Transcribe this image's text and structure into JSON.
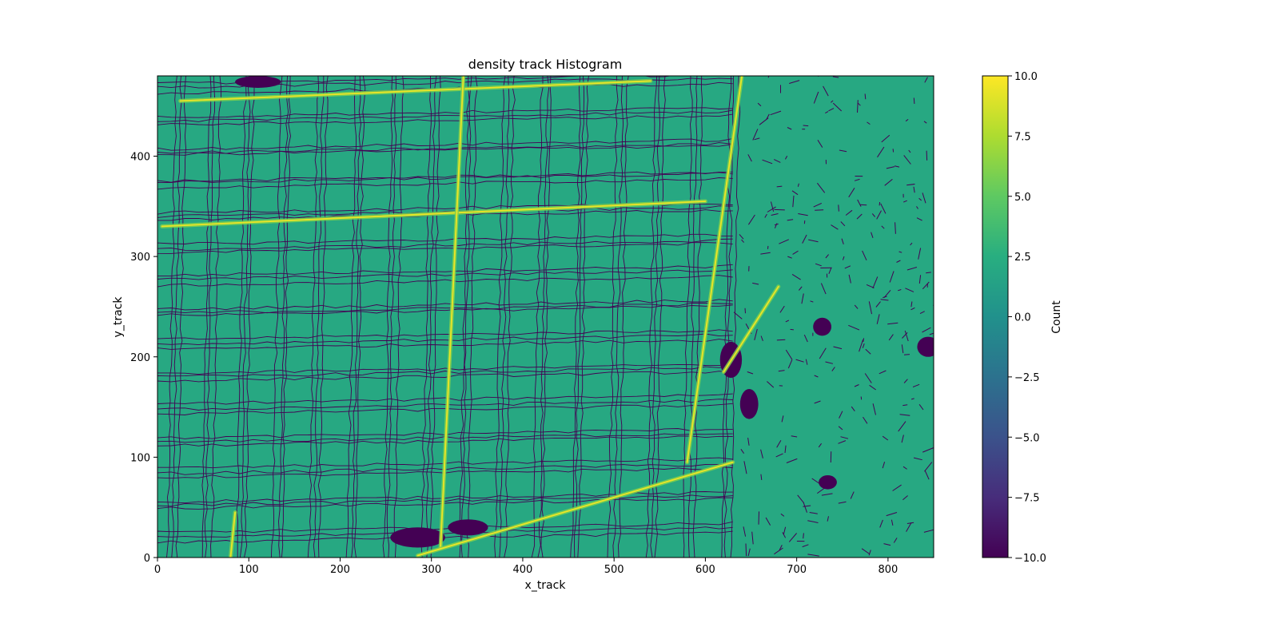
{
  "chart_data": {
    "type": "heatmap",
    "title": "density track Histogram",
    "xlabel": "x_track",
    "ylabel": "y_track",
    "xlim": [
      0,
      850
    ],
    "ylim": [
      0,
      480
    ],
    "x_ticks": [
      0,
      100,
      200,
      300,
      400,
      500,
      600,
      700,
      800
    ],
    "x_tick_labels": [
      "0",
      "100",
      "200",
      "300",
      "400",
      "500",
      "600",
      "700",
      "800"
    ],
    "y_ticks": [
      0,
      100,
      200,
      300,
      400
    ],
    "y_tick_labels": [
      "0",
      "100",
      "200",
      "300",
      "400"
    ],
    "colormap": "viridis",
    "colorbar": {
      "label": "Count",
      "range": [
        -10.0,
        10.0
      ],
      "ticks": [
        10.0,
        7.5,
        5.0,
        2.5,
        0.0,
        -2.5,
        -5.0,
        -7.5,
        -10.0
      ],
      "tick_labels": [
        "10.0",
        "7.5",
        "5.0",
        "2.5",
        "0.0",
        "−2.5",
        "−5.0",
        "−7.5",
        "−10.0"
      ]
    },
    "background_value": 2.0,
    "grid_region": {
      "x": [
        0,
        650
      ],
      "y": [
        0,
        480
      ]
    },
    "grid_vertical_lines_x": [
      20,
      58,
      97,
      137,
      177,
      217,
      258,
      299,
      340,
      381,
      422,
      463,
      504,
      545,
      586,
      627
    ],
    "grid_horizontal_lines_y": [
      20,
      52,
      84,
      116,
      148,
      180,
      212,
      244,
      276,
      308,
      340,
      372,
      404,
      436,
      468
    ],
    "bright_streets": [
      {
        "x": [
          5,
          600
        ],
        "y": [
          330,
          355
        ]
      },
      {
        "x": [
          25,
          540
        ],
        "y": [
          455,
          475
        ]
      },
      {
        "x": [
          310,
          335
        ],
        "y": [
          10,
          480
        ]
      },
      {
        "x": [
          285,
          630
        ],
        "y": [
          2,
          95
        ]
      },
      {
        "x": [
          580,
          640
        ],
        "y": [
          95,
          480
        ]
      },
      {
        "x": [
          80,
          85
        ],
        "y": [
          0,
          45
        ]
      },
      {
        "x": [
          620,
          680
        ],
        "y": [
          185,
          270
        ]
      }
    ],
    "low_density_blobs": [
      {
        "x": 285,
        "y": 20,
        "rx": 30,
        "ry": 10
      },
      {
        "x": 110,
        "y": 474,
        "rx": 25,
        "ry": 6
      },
      {
        "x": 628,
        "y": 197,
        "rx": 12,
        "ry": 18
      },
      {
        "x": 648,
        "y": 153,
        "rx": 10,
        "ry": 15
      },
      {
        "x": 728,
        "y": 230,
        "rx": 10,
        "ry": 9
      },
      {
        "x": 734,
        "y": 75,
        "rx": 10,
        "ry": 7
      },
      {
        "x": 844,
        "y": 210,
        "rx": 12,
        "ry": 10
      },
      {
        "x": 340,
        "y": 30,
        "rx": 22,
        "ry": 8
      }
    ]
  }
}
